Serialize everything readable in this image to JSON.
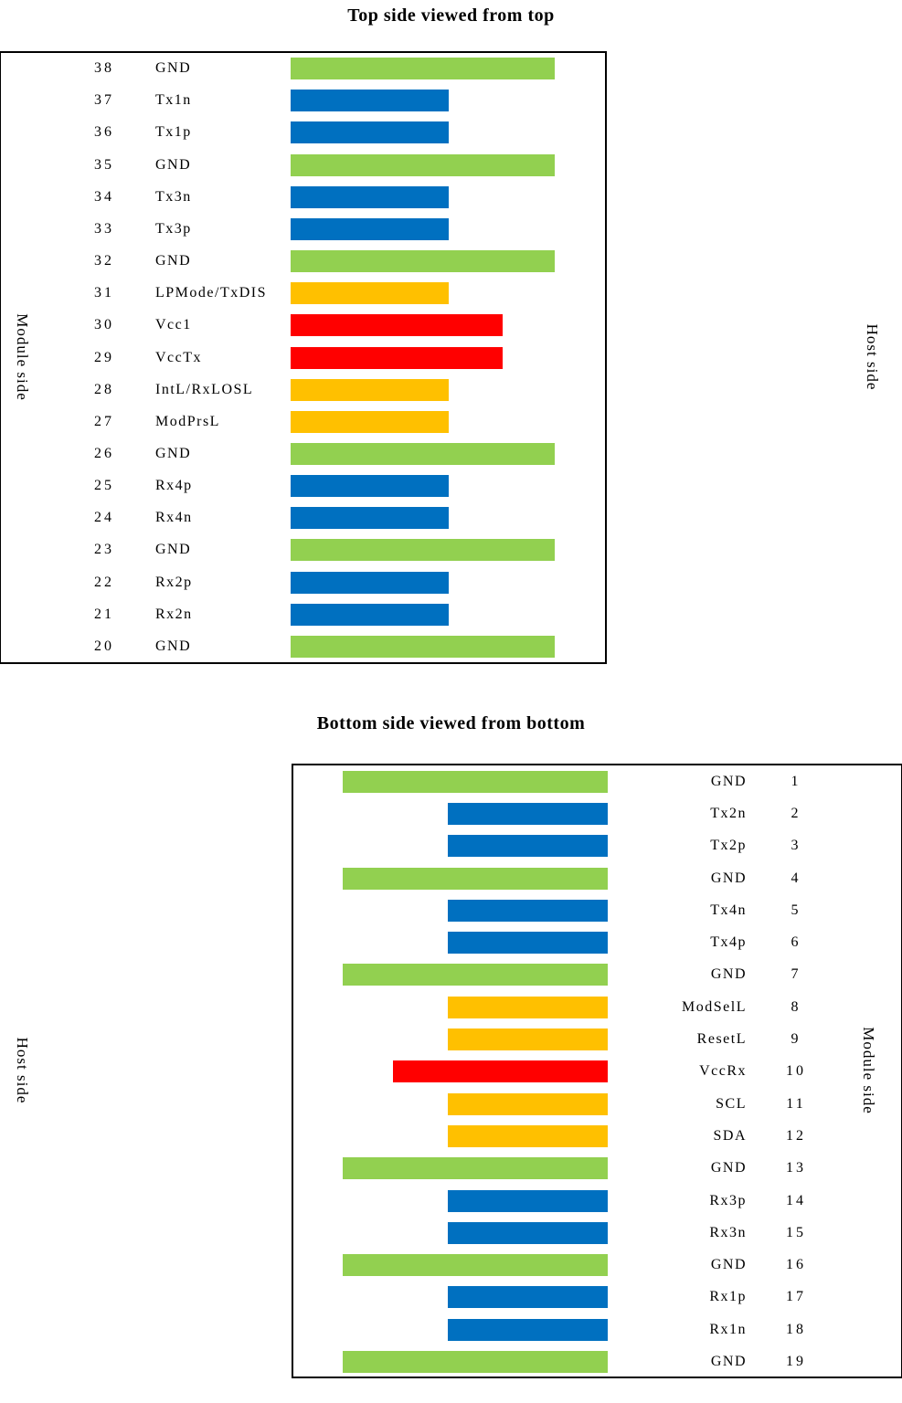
{
  "titles": {
    "top": "Top side viewed from top",
    "bottom": "Bottom side viewed from bottom"
  },
  "side_labels": {
    "top_left": "Module side",
    "top_right": "Host side",
    "bottom_left": "Host side",
    "bottom_right": "Module side"
  },
  "colors": {
    "gnd": "#92D050",
    "signal": "#0070C0",
    "control": "#FFC000",
    "power": "#FF0000"
  },
  "top_section": {
    "pins": [
      {
        "number": "38",
        "name": "GND",
        "type": "gnd"
      },
      {
        "number": "37",
        "name": "Tx1n",
        "type": "signal"
      },
      {
        "number": "36",
        "name": "Tx1p",
        "type": "signal"
      },
      {
        "number": "35",
        "name": "GND",
        "type": "gnd"
      },
      {
        "number": "34",
        "name": "Tx3n",
        "type": "signal"
      },
      {
        "number": "33",
        "name": "Tx3p",
        "type": "signal"
      },
      {
        "number": "32",
        "name": "GND",
        "type": "gnd"
      },
      {
        "number": "31",
        "name": "LPMode/TxDIS",
        "type": "control"
      },
      {
        "number": "30",
        "name": "Vcc1",
        "type": "power"
      },
      {
        "number": "29",
        "name": "VccTx",
        "type": "power"
      },
      {
        "number": "28",
        "name": "IntL/RxLOSL",
        "type": "control"
      },
      {
        "number": "27",
        "name": "ModPrsL",
        "type": "control"
      },
      {
        "number": "26",
        "name": "GND",
        "type": "gnd"
      },
      {
        "number": "25",
        "name": "Rx4p",
        "type": "signal"
      },
      {
        "number": "24",
        "name": "Rx4n",
        "type": "signal"
      },
      {
        "number": "23",
        "name": "GND",
        "type": "gnd"
      },
      {
        "number": "22",
        "name": "Rx2p",
        "type": "signal"
      },
      {
        "number": "21",
        "name": "Rx2n",
        "type": "signal"
      },
      {
        "number": "20",
        "name": "GND",
        "type": "gnd"
      }
    ]
  },
  "bottom_section": {
    "pins": [
      {
        "number": "1",
        "name": "GND",
        "type": "gnd"
      },
      {
        "number": "2",
        "name": "Tx2n",
        "type": "signal"
      },
      {
        "number": "3",
        "name": "Tx2p",
        "type": "signal"
      },
      {
        "number": "4",
        "name": "GND",
        "type": "gnd"
      },
      {
        "number": "5",
        "name": "Tx4n",
        "type": "signal"
      },
      {
        "number": "6",
        "name": "Tx4p",
        "type": "signal"
      },
      {
        "number": "7",
        "name": "GND",
        "type": "gnd"
      },
      {
        "number": "8",
        "name": "ModSelL",
        "type": "control"
      },
      {
        "number": "9",
        "name": "ResetL",
        "type": "control"
      },
      {
        "number": "10",
        "name": "VccRx",
        "type": "power"
      },
      {
        "number": "11",
        "name": "SCL",
        "type": "control"
      },
      {
        "number": "12",
        "name": "SDA",
        "type": "control"
      },
      {
        "number": "13",
        "name": "GND",
        "type": "gnd"
      },
      {
        "number": "14",
        "name": "Rx3p",
        "type": "signal"
      },
      {
        "number": "15",
        "name": "Rx3n",
        "type": "signal"
      },
      {
        "number": "16",
        "name": "GND",
        "type": "gnd"
      },
      {
        "number": "17",
        "name": "Rx1p",
        "type": "signal"
      },
      {
        "number": "18",
        "name": "Rx1n",
        "type": "signal"
      },
      {
        "number": "19",
        "name": "GND",
        "type": "gnd"
      }
    ]
  }
}
